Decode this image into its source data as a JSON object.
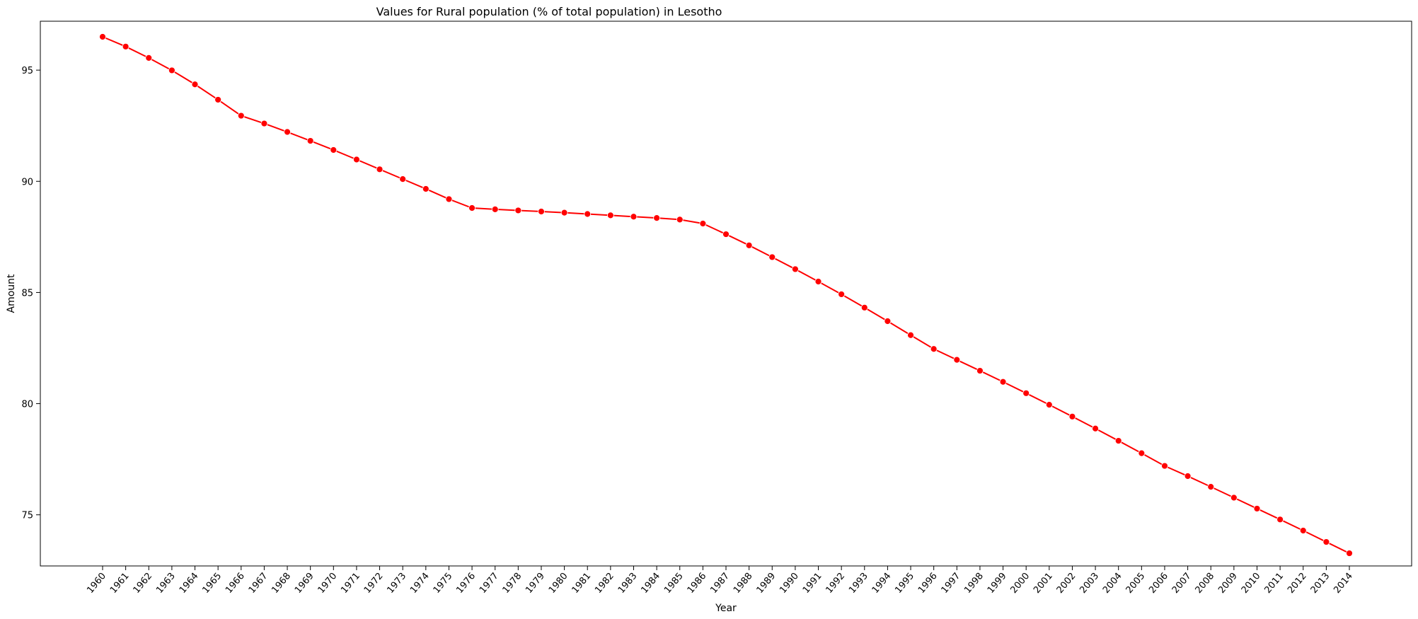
{
  "chart_data": {
    "type": "line",
    "title": "Values for Rural population (% of total population) in Lesotho",
    "xlabel": "Year",
    "ylabel": "Amount",
    "ylim": [
      72.7,
      97.2
    ],
    "yticks": [
      75,
      80,
      85,
      90,
      95
    ],
    "grid": false,
    "colors": {
      "series": "#ff0000"
    },
    "x": [
      "1960",
      "1961",
      "1962",
      "1963",
      "1964",
      "1965",
      "1966",
      "1967",
      "1968",
      "1969",
      "1970",
      "1971",
      "1972",
      "1973",
      "1974",
      "1975",
      "1976",
      "1977",
      "1978",
      "1979",
      "1980",
      "1981",
      "1982",
      "1983",
      "1984",
      "1985",
      "1986",
      "1987",
      "1988",
      "1989",
      "1990",
      "1991",
      "1992",
      "1993",
      "1994",
      "1995",
      "1996",
      "1997",
      "1998",
      "1999",
      "2000",
      "2001",
      "2002",
      "2003",
      "2004",
      "2005",
      "2006",
      "2007",
      "2008",
      "2009",
      "2010",
      "2011",
      "2012",
      "2013",
      "2014"
    ],
    "series": [
      {
        "values": [
          96.5,
          96.06,
          95.55,
          94.99,
          94.36,
          93.67,
          92.95,
          92.6,
          92.22,
          91.82,
          91.41,
          90.98,
          90.54,
          90.1,
          89.66,
          89.2,
          88.8,
          88.74,
          88.69,
          88.64,
          88.59,
          88.53,
          88.47,
          88.41,
          88.35,
          88.28,
          88.1,
          87.62,
          87.12,
          86.59,
          86.05,
          85.49,
          84.92,
          84.32,
          83.71,
          83.08,
          82.46,
          81.97,
          81.48,
          80.98,
          80.47,
          79.95,
          79.42,
          78.88,
          78.33,
          77.77,
          77.2,
          76.74,
          76.26,
          75.77,
          75.28,
          74.79,
          74.29,
          73.78,
          73.27
        ]
      }
    ]
  }
}
